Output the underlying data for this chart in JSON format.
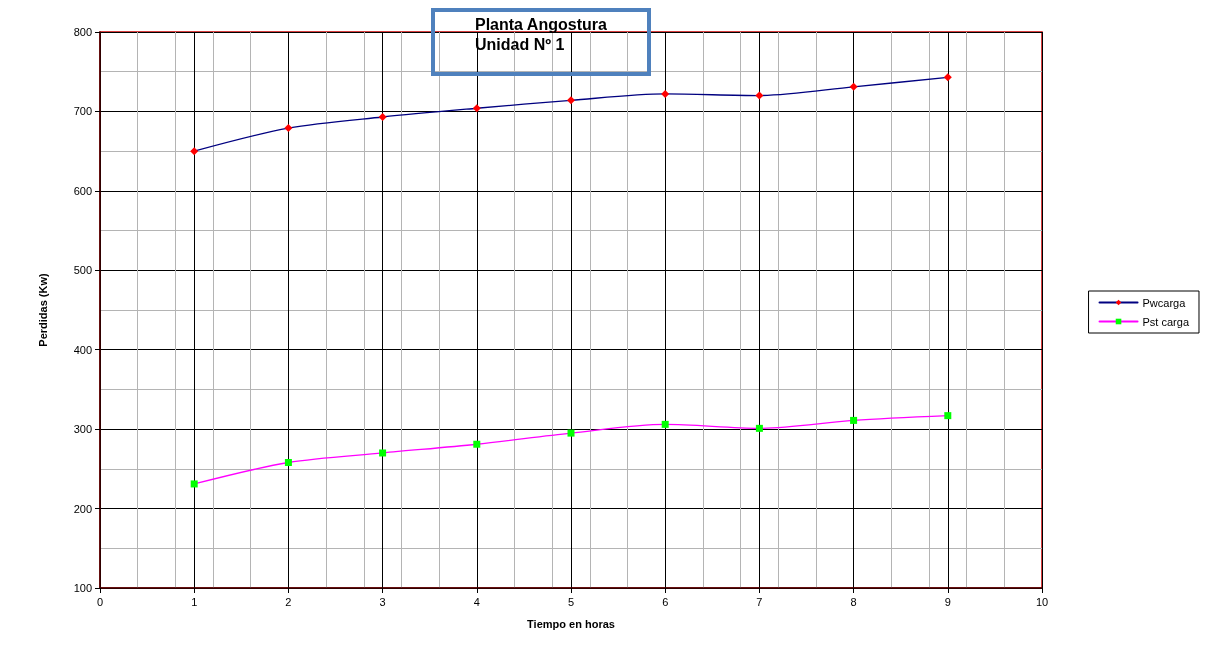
{
  "chart_data": {
    "type": "line",
    "title": "Planta Angostura\nUnidad Nº 1",
    "xlabel": "Tiempo en horas",
    "ylabel": "Perdidas (Kw)",
    "x": [
      1,
      2,
      3,
      4,
      5,
      6,
      7,
      8,
      9
    ],
    "series": [
      {
        "name": "Pwcarga",
        "color": "#000080",
        "marker": "diamond",
        "colors": [
          "#ff0000",
          "#ff0000",
          "#ff0000",
          "#ff0000",
          "#ff0000",
          "#ff0000",
          "#ff0000",
          "#ff0000",
          "#ff0000"
        ],
        "values": [
          650,
          679,
          693,
          704,
          714,
          722,
          720,
          731,
          743
        ]
      },
      {
        "name": "Pst carga",
        "color": "#ff00ff",
        "marker": "square",
        "colors": [
          "#00ff00",
          "#00ff00",
          "#00ff00",
          "#00ff00",
          "#00ff00",
          "#00ff00",
          "#00ff00",
          "#00ff00",
          "#00ff00"
        ],
        "values": [
          231,
          258,
          270,
          281,
          295,
          306,
          301,
          311,
          317
        ]
      }
    ],
    "xlim": [
      0,
      10
    ],
    "xticks": [
      0,
      1,
      2,
      3,
      4,
      5,
      6,
      7,
      8,
      9,
      10
    ],
    "ylim": [
      100,
      800
    ],
    "yticks": [
      100,
      200,
      300,
      400,
      500,
      600,
      700,
      800
    ],
    "grid": true,
    "legend": "right",
    "line_style": "solid"
  }
}
